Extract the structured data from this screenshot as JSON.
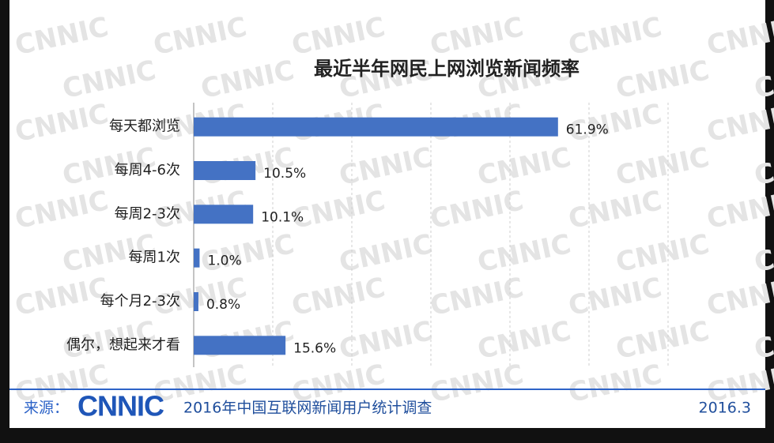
{
  "chart_data": {
    "type": "bar",
    "orientation": "horizontal",
    "title": "最近半年网民上网浏览新闻频率",
    "categories": [
      "每天都浏览",
      "每周4-6次",
      "每周2-3次",
      "每周1次",
      "每个月2-3次",
      "偶尔，想起来才看"
    ],
    "values": [
      61.9,
      10.5,
      10.1,
      1.0,
      0.8,
      15.6
    ],
    "value_labels": [
      "61.9%",
      "10.5%",
      "10.1%",
      "1.0%",
      "0.8%",
      "15.6%"
    ],
    "color": "#4472c4",
    "xlim": [
      0,
      90
    ]
  },
  "footer": {
    "source_label": "来源：",
    "logo": "CNNIC",
    "source": "2016年中国互联网新闻用户统计调查",
    "date": "2016.3"
  },
  "watermark": "CNNIC"
}
